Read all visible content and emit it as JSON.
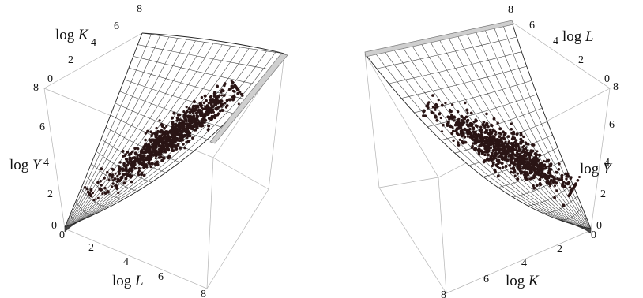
{
  "chart_data": [
    {
      "type": "scatter",
      "view": "left",
      "surface": "production function mesh with scatter of observations",
      "axes": {
        "K": {
          "label_prefix": "log ",
          "label_var": "K",
          "ticks": [
            "8",
            "6",
            "4",
            "2",
            "0"
          ],
          "range": [
            0,
            8
          ]
        },
        "L": {
          "label_prefix": "log ",
          "label_var": "L",
          "ticks": [
            "0",
            "2",
            "4",
            "6",
            "8"
          ],
          "range": [
            0,
            8
          ]
        },
        "Y": {
          "label_prefix": "log ",
          "label_var": "Y",
          "ticks": [
            "0",
            "2",
            "4",
            "6",
            "8"
          ],
          "range": [
            0,
            8
          ]
        }
      },
      "grid": true,
      "point_color": "#2a1515"
    },
    {
      "type": "scatter",
      "view": "right",
      "surface": "production function mesh with scatter of observations",
      "axes": {
        "L": {
          "label_prefix": "log ",
          "label_var": "L",
          "ticks": [
            "8",
            "6",
            "4",
            "2",
            "0"
          ],
          "range": [
            0,
            8
          ]
        },
        "K": {
          "label_prefix": "log ",
          "label_var": "K",
          "ticks": [
            "8",
            "6",
            "4",
            "2",
            "0"
          ],
          "range": [
            0,
            8
          ]
        },
        "Y": {
          "label_prefix": "log ",
          "label_var": "Y",
          "ticks": [
            "8",
            "6",
            "4",
            "2",
            "0"
          ],
          "range": [
            0,
            8
          ]
        }
      },
      "grid": true,
      "point_color": "#2a1515"
    }
  ]
}
